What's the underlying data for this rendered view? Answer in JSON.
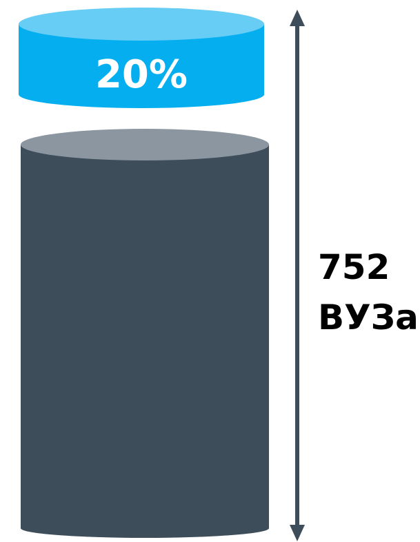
{
  "top_segment": {
    "label": "20%",
    "color_top": "#67cdf4",
    "color_body": "#05aeef",
    "label_color": "#ffffff"
  },
  "bottom_segment": {
    "color_top": "#8c96a1",
    "color_body": "#3e4d5a"
  },
  "measure": {
    "value": "752",
    "unit": "ВУЗа",
    "arrow_color": "#3e4d5a",
    "text_color": "#000000"
  }
}
